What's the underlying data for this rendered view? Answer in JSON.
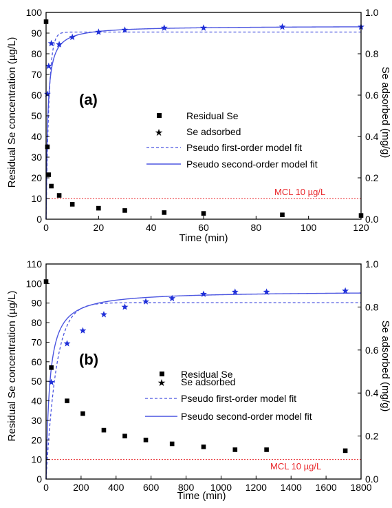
{
  "chart_data": [
    {
      "type": "scatter",
      "panel_label": "(a)",
      "xlabel": "Time (min)",
      "ylabel_left": "Residual Se concentration (µg/L)",
      "ylabel_right": "Se adsorbed (mg/g)",
      "xlim": [
        0,
        120
      ],
      "ylim_left": [
        0,
        100
      ],
      "ylim_right": [
        0,
        1.0
      ],
      "x_ticks": [
        "0",
        "20",
        "40",
        "60",
        "80",
        "100",
        "120"
      ],
      "y_left_ticks": [
        "0",
        "10",
        "20",
        "30",
        "40",
        "50",
        "60",
        "70",
        "80",
        "90",
        "100"
      ],
      "y_right_ticks": [
        "0.0",
        "0.2",
        "0.4",
        "0.6",
        "0.8",
        "1.0"
      ],
      "mcl": {
        "label": "MCL 10 µg/L",
        "value": 10
      },
      "legend": {
        "residual": "Residual Se",
        "adsorbed": "Se adsorbed",
        "pfo": "Pseudo first-order model fit",
        "pso": "Pseudo second-order model fit"
      },
      "residual_se": {
        "x": [
          0,
          0.5,
          1,
          2,
          5,
          10,
          20,
          30,
          45,
          60,
          90,
          120
        ],
        "y": [
          95.5,
          35,
          21.5,
          16,
          11.5,
          7.2,
          5.3,
          4.2,
          3.2,
          2.8,
          2.1,
          1.8
        ]
      },
      "se_adsorbed": {
        "x": [
          0.5,
          1,
          2,
          5,
          10,
          20,
          30,
          45,
          60,
          90,
          120
        ],
        "y": [
          0.605,
          0.74,
          0.85,
          0.845,
          0.88,
          0.905,
          0.915,
          0.925,
          0.925,
          0.93,
          0.93
        ]
      },
      "pfo_fit": {
        "qe": 0.905,
        "k1": 0.9
      },
      "pso_fit": {
        "qe": 0.935,
        "k2": 1.8
      }
    },
    {
      "type": "scatter",
      "panel_label": "(b)",
      "xlabel": "Time (min)",
      "ylabel_left": "Residual Se concentration (µg/L)",
      "ylabel_right": "Se adsorbed (mg/g)",
      "xlim": [
        0,
        1800
      ],
      "ylim_left": [
        0,
        110
      ],
      "ylim_right": [
        0,
        1.0
      ],
      "x_ticks": [
        "0",
        "200",
        "400",
        "600",
        "800",
        "1000",
        "1200",
        "1400",
        "1600",
        "1800"
      ],
      "y_left_ticks": [
        "0",
        "10",
        "20",
        "30",
        "40",
        "50",
        "60",
        "70",
        "80",
        "90",
        "100",
        "110"
      ],
      "y_right_ticks": [
        "0.0",
        "0.2",
        "0.4",
        "0.6",
        "0.8",
        "1.0"
      ],
      "mcl": {
        "label": "MCL 10 µg/L",
        "value": 10
      },
      "legend": {
        "residual": "Residual Se",
        "adsorbed": "Se adsorbed",
        "pfo": "Pseudo first-order model fit",
        "pso": "Pseudo second-order model fit"
      },
      "residual_se": {
        "x": [
          0,
          30,
          120,
          210,
          330,
          450,
          570,
          720,
          900,
          1080,
          1260,
          1710
        ],
        "y": [
          101,
          57,
          40,
          33.5,
          25,
          22,
          20,
          18,
          16.5,
          15,
          15,
          14.5
        ]
      },
      "se_adsorbed": {
        "x": [
          30,
          120,
          210,
          330,
          450,
          570,
          720,
          900,
          1080,
          1260,
          1710
        ],
        "y": [
          0.45,
          0.63,
          0.69,
          0.765,
          0.8,
          0.825,
          0.84,
          0.86,
          0.87,
          0.87,
          0.875
        ]
      },
      "pfo_fit": {
        "qe": 0.82,
        "k1": 0.017
      },
      "pso_fit": {
        "qe": 0.875,
        "k2": 0.055
      }
    }
  ],
  "colors": {
    "residual": "#000000",
    "adsorbed": "#1f2fd8",
    "fit": "#4b55e0",
    "mcl": "#e8262a"
  }
}
